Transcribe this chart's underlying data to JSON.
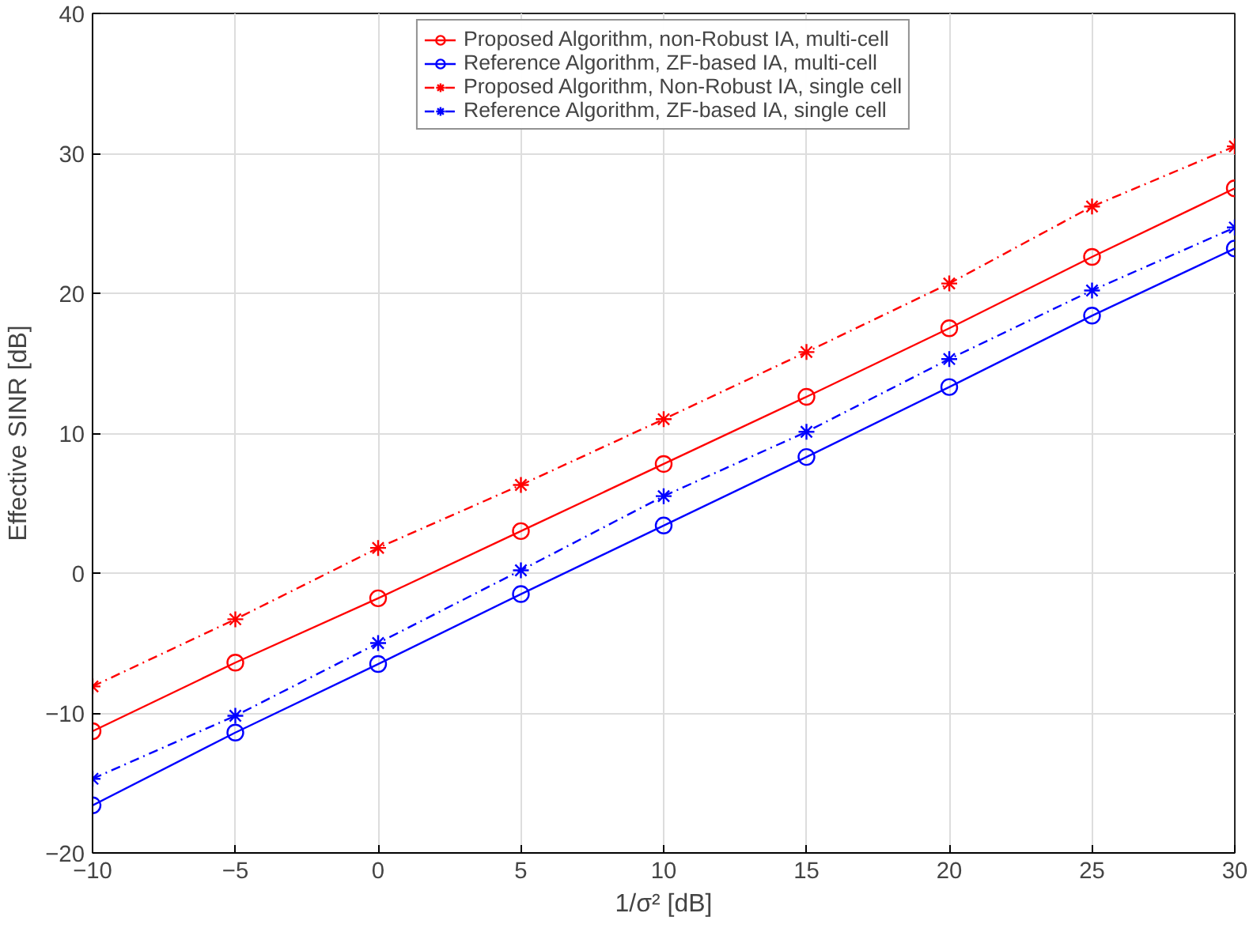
{
  "chart_data": {
    "type": "line",
    "xlabel": "1/σ² [dB]",
    "ylabel": "Effective SINR [dB]",
    "x": [
      -10,
      -5,
      0,
      5,
      10,
      15,
      20,
      25,
      30
    ],
    "xlim": [
      -10,
      30
    ],
    "xticks": [
      -10,
      -5,
      0,
      5,
      10,
      15,
      20,
      25,
      30
    ],
    "ylim": [
      -20,
      40
    ],
    "yticks": [
      -20,
      -10,
      0,
      10,
      20,
      30,
      40
    ],
    "grid": true,
    "legend": "top",
    "series": [
      {
        "name": "Proposed Algorithm, non-Robust IA, multi-cell",
        "color": "#ff0000",
        "marker": "circle",
        "line_style": "solid",
        "values": [
          -11.3,
          -6.4,
          -1.8,
          3.0,
          7.8,
          12.6,
          17.5,
          22.6,
          27.5
        ]
      },
      {
        "name": "Reference Algorithm, ZF-based IA, multi-cell",
        "color": "#0000ff",
        "marker": "circle",
        "line_style": "solid",
        "values": [
          -16.6,
          -11.4,
          -6.5,
          -1.5,
          3.4,
          8.3,
          13.3,
          18.4,
          23.2
        ]
      },
      {
        "name": "Proposed Algorithm, Non-Robust IA, single cell",
        "color": "#ff0000",
        "marker": "cross",
        "line_style": "dashed",
        "values": [
          -8.1,
          -3.3,
          1.8,
          6.3,
          11.0,
          15.8,
          20.7,
          26.2,
          30.5
        ]
      },
      {
        "name": "Reference Algorithm, ZF-based IA, single cell",
        "color": "#0000ff",
        "marker": "cross",
        "line_style": "dashed",
        "values": [
          -14.7,
          -10.2,
          -5.0,
          0.2,
          5.5,
          10.1,
          15.3,
          20.2,
          24.7
        ]
      }
    ]
  }
}
